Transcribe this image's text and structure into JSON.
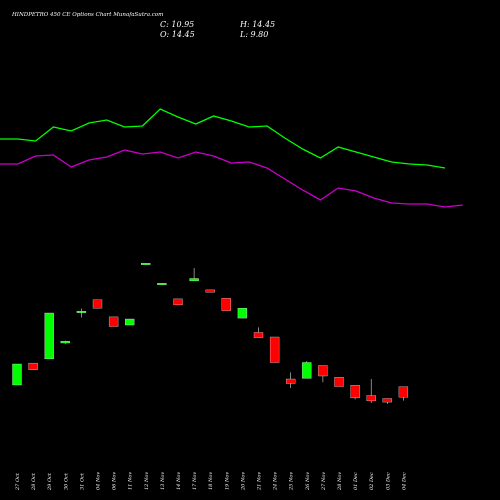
{
  "header": {
    "title": "HINDPETRO 450  CE Options  Chart MunafaSutra.com",
    "close": "C: 10.95",
    "high": "H: 14.45",
    "open": "O: 14.45",
    "low": "L: 9.80"
  },
  "colors": {
    "background": "#000000",
    "up": "#00ff00",
    "down": "#ff0000",
    "line_upper": "#00ff00",
    "line_lower": "#cc00cc",
    "text": "#ffffff"
  },
  "chart_data": {
    "type": "candlestick",
    "categories": [
      "27 Oct",
      "28 Oct",
      "29 Oct",
      "30 Oct",
      "31 Oct",
      "04 Nov",
      "06 Nov",
      "11 Nov",
      "12 Nov",
      "13 Nov",
      "14 Nov",
      "17 Nov",
      "18 Nov",
      "19 Nov",
      "20 Nov",
      "21 Nov",
      "24 Nov",
      "25 Nov",
      "26 Nov",
      "27 Nov",
      "28 Nov",
      "01 Dec",
      "02 Dec",
      "03 Dec",
      "04 Dec"
    ],
    "candles": [
      {
        "open": 15.0,
        "high": 22.0,
        "low": 15.0,
        "close": 22.0
      },
      {
        "open": 22.3,
        "high": 22.3,
        "low": 20.1,
        "close": 20.1
      },
      {
        "open": 23.7,
        "high": 39.0,
        "low": 23.7,
        "close": 39.0
      },
      {
        "open": 29.0,
        "high": 29.8,
        "low": 28.7,
        "close": 29.6
      },
      {
        "open": 39.1,
        "high": 40.5,
        "low": 37.5,
        "close": 39.6
      },
      {
        "open": 43.4,
        "high": 43.4,
        "low": 40.6,
        "close": 40.6
      },
      {
        "open": 37.7,
        "high": 37.7,
        "low": 34.5,
        "close": 34.5
      },
      {
        "open": 35.0,
        "high": 37.0,
        "low": 35.0,
        "close": 37.0
      },
      {
        "open": 55.3,
        "high": 55.6,
        "low": 55.1,
        "close": 55.6
      },
      {
        "open": 48.6,
        "high": 48.9,
        "low": 48.4,
        "close": 48.9
      },
      {
        "open": 43.7,
        "high": 43.7,
        "low": 41.7,
        "close": 41.7
      },
      {
        "open": 49.7,
        "high": 54.0,
        "low": 49.7,
        "close": 50.5
      },
      {
        "open": 46.7,
        "high": 46.7,
        "low": 45.9,
        "close": 45.9
      },
      {
        "open": 43.9,
        "high": 43.9,
        "low": 39.8,
        "close": 39.8
      },
      {
        "open": 37.3,
        "high": 40.6,
        "low": 37.3,
        "close": 40.6
      },
      {
        "open": 32.5,
        "high": 34.2,
        "low": 30.8,
        "close": 30.8
      },
      {
        "open": 31.0,
        "high": 31.0,
        "low": 22.5,
        "close": 22.5
      },
      {
        "open": 17.0,
        "high": 19.2,
        "low": 14.0,
        "close": 15.5
      },
      {
        "open": 17.2,
        "high": 23.0,
        "low": 17.2,
        "close": 22.5
      },
      {
        "open": 21.5,
        "high": 21.5,
        "low": 15.9,
        "close": 18.0
      },
      {
        "open": 17.6,
        "high": 17.6,
        "low": 14.5,
        "close": 14.5
      },
      {
        "open": 14.9,
        "high": 14.9,
        "low": 10.2,
        "close": 10.7
      },
      {
        "open": 11.5,
        "high": 17.0,
        "low": 9.0,
        "close": 9.7
      },
      {
        "open": 10.5,
        "high": 10.5,
        "low": 8.7,
        "close": 9.3
      },
      {
        "open": 14.45,
        "high": 14.45,
        "low": 9.8,
        "close": 10.95
      }
    ],
    "upper_line": [
      111,
      111,
      109,
      123,
      119,
      127,
      130,
      123,
      124,
      141,
      133,
      126,
      134,
      129,
      123,
      124,
      112,
      101,
      92,
      103,
      98,
      93,
      88,
      86,
      85,
      82
    ],
    "lower_line": [
      86,
      86,
      94,
      95,
      83,
      90,
      93,
      100,
      96,
      98,
      92,
      98,
      94,
      87,
      88,
      82,
      71,
      60,
      50,
      62,
      59,
      52,
      47,
      46,
      46,
      43,
      45
    ],
    "xlabel": "",
    "ylabel": ""
  }
}
